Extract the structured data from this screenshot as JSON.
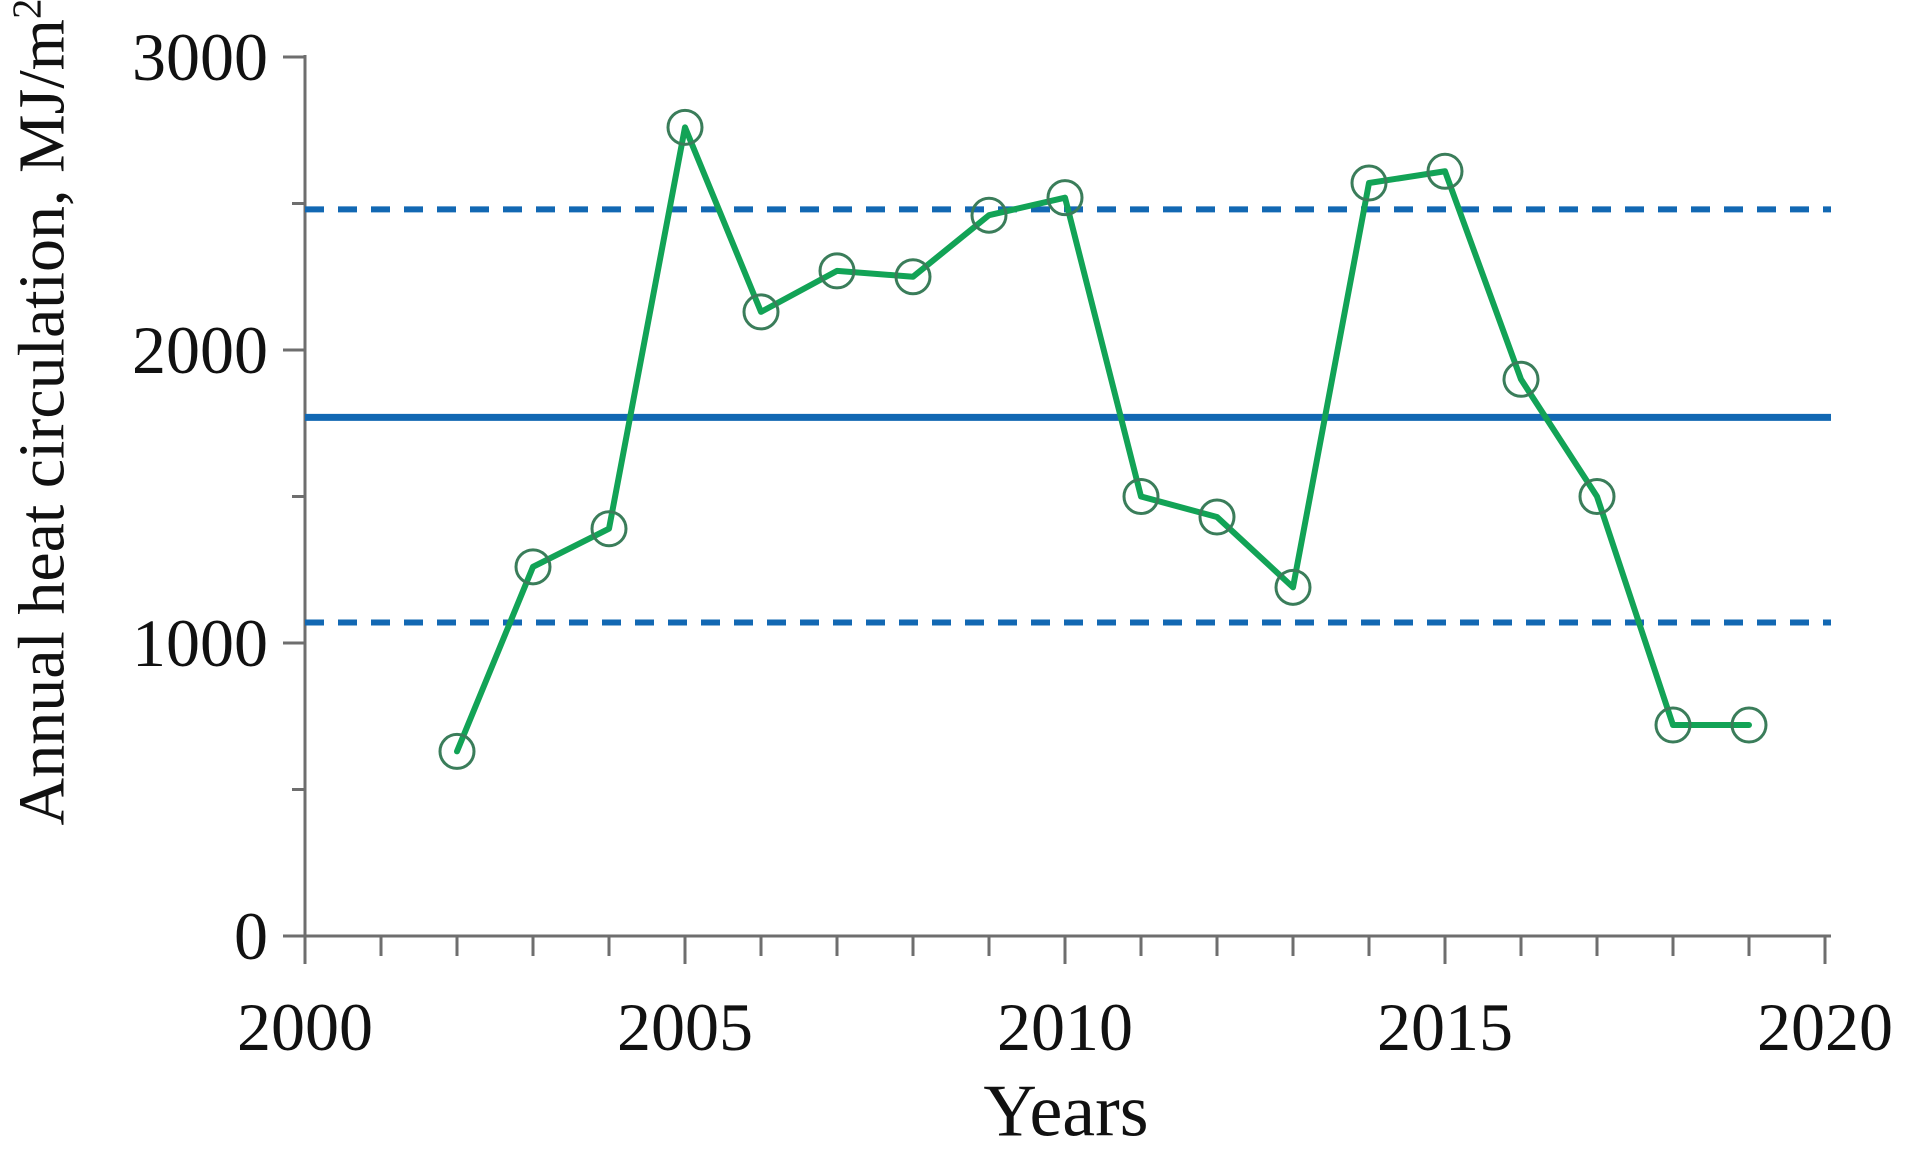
{
  "figure": {
    "background_color": "#ffffff",
    "text_color": "#111111",
    "axis_color": "#6e6e6e"
  },
  "chart_data": {
    "type": "line",
    "title": "",
    "xlabel": "Years",
    "ylabel": "Annual heat circulation, MJ/m²",
    "ylabel_main": "Annual heat circulation, MJ/m",
    "ylabel_sup": "2",
    "x": [
      2002,
      2003,
      2004,
      2005,
      2006,
      2007,
      2008,
      2009,
      2010,
      2011,
      2012,
      2013,
      2014,
      2015,
      2016,
      2017,
      2018,
      2019
    ],
    "series": [
      {
        "name": "annual-heat-circulation",
        "color": "#12a356",
        "marker": "open-circle",
        "marker_color": "#3a7d5a",
        "values": [
          630,
          1260,
          1390,
          2760,
          2130,
          2270,
          2250,
          2460,
          2520,
          1500,
          1430,
          1190,
          2570,
          2610,
          1900,
          1500,
          720,
          720
        ]
      }
    ],
    "reference_lines": [
      {
        "name": "mean-line",
        "value": 1770,
        "style": "solid",
        "color": "#1268b3"
      },
      {
        "name": "upper-band-line",
        "value": 2480,
        "style": "dashed",
        "color": "#1268b3"
      },
      {
        "name": "lower-band-line",
        "value": 1070,
        "style": "dashed",
        "color": "#1268b3"
      }
    ],
    "x_axis": {
      "min": 2000,
      "max": 2020,
      "major_ticks": [
        2000,
        2005,
        2010,
        2015,
        2020
      ],
      "minor_tick_step": 1
    },
    "y_axis": {
      "min": 0,
      "max": 3000,
      "major_ticks": [
        0,
        1000,
        2000,
        3000
      ],
      "minor_tick_step": 500
    },
    "grid": false,
    "legend": false
  }
}
